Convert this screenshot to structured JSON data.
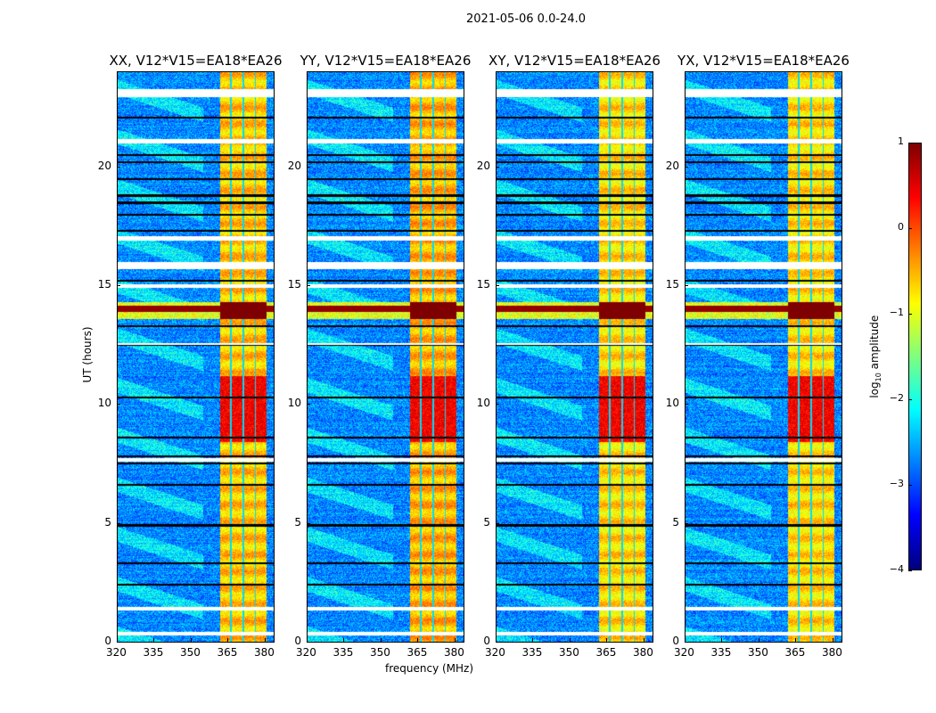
{
  "chart_data": {
    "type": "heatmap",
    "suptitle": "2021-05-06 0.0-24.0",
    "panels": [
      {
        "title": "XX, V12*V15=EA18*EA26",
        "pol": "XX",
        "band_level": -0.6
      },
      {
        "title": "YY, V12*V15=EA18*EA26",
        "pol": "YY",
        "band_level": -0.5
      },
      {
        "title": "XY, V12*V15=EA18*EA26",
        "pol": "XY",
        "band_level": -0.7
      },
      {
        "title": "YX, V12*V15=EA18*EA26",
        "pol": "YX",
        "band_level": -0.7
      }
    ],
    "xlabel": "frequency (MHz)",
    "ylabel": "UT (hours)",
    "xlim": [
      320,
      384
    ],
    "ylim": [
      0,
      24
    ],
    "xticks": [
      "320",
      "335",
      "350",
      "365",
      "380"
    ],
    "yticks": [
      "0",
      "5",
      "10",
      "15",
      "20"
    ],
    "xtick_values": [
      320,
      335,
      350,
      365,
      380
    ],
    "ytick_values": [
      0,
      5,
      10,
      15,
      20
    ],
    "colormap": "jet",
    "colorbar": {
      "label_main": "log",
      "label_sub": "10",
      "label_rest": " amplitude",
      "range": [
        -4,
        1
      ],
      "tick_values": [
        1,
        0,
        -1,
        -2,
        -3,
        -4
      ],
      "ticks": [
        "1",
        "0",
        "−1",
        "−2",
        "−3",
        "−4"
      ]
    },
    "features": {
      "background_log_amp": -2.7,
      "rfi_band_mhz": [
        362,
        381
      ],
      "band_channel_gaps_mhz": [
        366.5,
        371.5,
        376.5
      ],
      "strong_hours": [
        8.4,
        11.2
      ],
      "strong_level": 0.3,
      "saturated_hours": [
        13.6,
        14.3
      ],
      "flagged_hours_white": [
        [
          0.25,
          0.4
        ],
        [
          1.3,
          1.45
        ],
        [
          15.7,
          16.0
        ],
        [
          16.9,
          17.1
        ],
        [
          21.0,
          21.2
        ],
        [
          22.95,
          23.3
        ],
        [
          14.9,
          15.05
        ],
        [
          12.5,
          12.6
        ],
        [
          7.6,
          7.75
        ]
      ],
      "black_row_hours": [
        2.4,
        3.3,
        4.9,
        6.6,
        7.5,
        7.8,
        8.6,
        10.3,
        12.5,
        13.3,
        15.2,
        17.3,
        18.0,
        18.5,
        18.8,
        19.5,
        20.2,
        20.5,
        22.1
      ]
    }
  }
}
